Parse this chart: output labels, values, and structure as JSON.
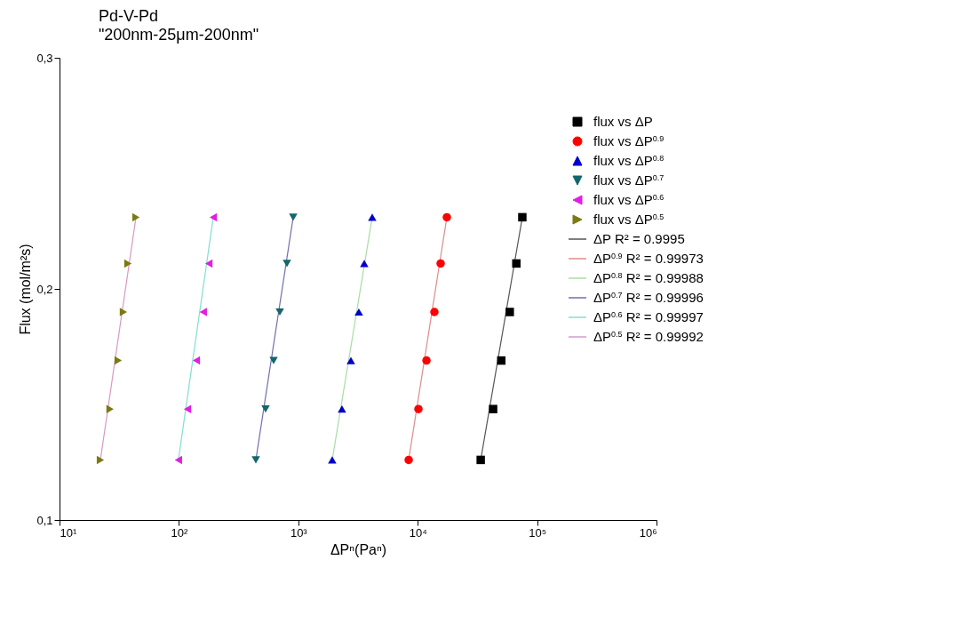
{
  "chart_data": {
    "type": "scatter",
    "title": "Pd-V-Pd",
    "subtitle": "\"200nm-25μm-200nm\"",
    "xlabel": "ΔPⁿ(Paⁿ)",
    "ylabel": "Flux (mol/m²s)",
    "log": "x",
    "grid": false,
    "legend": "top right",
    "xlim": [
      10,
      1000000
    ],
    "xticks": [
      {
        "value": 10,
        "label": "10¹"
      },
      {
        "value": 100,
        "label": "10²"
      },
      {
        "value": 1000,
        "label": "10³"
      },
      {
        "value": 10000,
        "label": "10⁴"
      },
      {
        "value": 100000,
        "label": "10⁵"
      },
      {
        "value": 1000000,
        "label": "10⁶"
      }
    ],
    "ylim": [
      0.1,
      0.3
    ],
    "yticks": [
      {
        "value": 0.1,
        "label": "0,1"
      },
      {
        "value": 0.2,
        "label": "0,2"
      },
      {
        "value": 0.3,
        "label": "0,3"
      }
    ],
    "series": [
      {
        "name": "flux vs ΔP",
        "marker": "square",
        "color": "#000000",
        "x": [
          33700,
          42800,
          50100,
          59000,
          67000,
          75200
        ],
        "values": [
          0.126,
          0.148,
          0.169,
          0.19,
          0.211,
          0.231
        ]
      },
      {
        "name": "flux vs ΔP$^{0.9}$",
        "marker": "circle",
        "color": "#ff0000",
        "x": [
          8400,
          10140,
          11840,
          13800,
          15560,
          17540
        ],
        "values": [
          0.126,
          0.148,
          0.169,
          0.19,
          0.211,
          0.231
        ]
      },
      {
        "name": "flux vs ΔP$^{0.8}$",
        "marker": "triangle-up",
        "color": "#0000cc",
        "x": [
          1923,
          2320,
          2756,
          3213,
          3565,
          4160
        ],
        "values": [
          0.126,
          0.148,
          0.169,
          0.19,
          0.211,
          0.231
        ]
      },
      {
        "name": "flux vs ΔP$^{0.7}$",
        "marker": "triangle-down",
        "color": "#11676b",
        "x": [
          441,
          532,
          621,
          700,
          803,
          906
        ],
        "values": [
          0.126,
          0.148,
          0.169,
          0.19,
          0.211,
          0.231
        ]
      },
      {
        "name": "flux vs ΔP$^{0.6}$",
        "marker": "triangle-left",
        "color": "#e020e0",
        "x": [
          99,
          118,
          140,
          160,
          178,
          194
        ],
        "values": [
          0.126,
          0.148,
          0.169,
          0.19,
          0.211,
          0.231
        ]
      },
      {
        "name": "flux vs ΔP$^{0.5}$",
        "marker": "triangle-right",
        "color": "#7a7a10",
        "x": [
          22,
          26.5,
          31,
          34.3,
          37.4,
          43.7
        ],
        "values": [
          0.126,
          0.148,
          0.169,
          0.19,
          0.211,
          0.231
        ]
      },
      {
        "name": "ΔP    R² = 0.9995",
        "type": "line",
        "color": "#555555",
        "x": [
          33700,
          75200
        ],
        "values": [
          0.126,
          0.231
        ]
      },
      {
        "name": "ΔP$^{0.9}$  R² = 0.99973",
        "type": "line",
        "color": "#e08c8c",
        "x": [
          8400,
          17540
        ],
        "values": [
          0.126,
          0.231
        ]
      },
      {
        "name": "ΔP$^{0.8}$  R² = 0.99988",
        "type": "line",
        "color": "#a8dca8",
        "x": [
          1923,
          4160
        ],
        "values": [
          0.126,
          0.231
        ]
      },
      {
        "name": "ΔP$^{0.7}$  R² = 0.99996",
        "type": "line",
        "color": "#7070b0",
        "x": [
          441,
          906
        ],
        "values": [
          0.126,
          0.231
        ]
      },
      {
        "name": "ΔP$^{0.6}$  R² = 0.99997",
        "type": "line",
        "color": "#80e0d0",
        "x": [
          99,
          194
        ],
        "values": [
          0.126,
          0.231
        ]
      },
      {
        "name": "ΔP$^{0.5}$  R² = 0.99992",
        "type": "line",
        "color": "#d898c8",
        "x": [
          22,
          43.7
        ],
        "values": [
          0.126,
          0.231
        ]
      }
    ]
  }
}
